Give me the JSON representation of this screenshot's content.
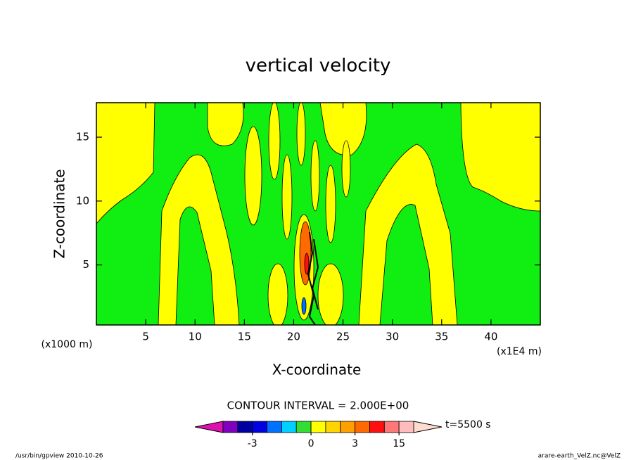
{
  "chart_data": {
    "type": "contour",
    "title": "vertical velocity",
    "x_label": "X-coordinate",
    "y_label": "Z-coordinate",
    "x_unit": "(x1E4 m)",
    "y_unit": "(x1000 m)",
    "xlim": [
      0,
      45
    ],
    "ylim": [
      0.3,
      17.7
    ],
    "xticks": [
      5,
      10,
      15,
      20,
      25,
      30,
      35,
      40
    ],
    "yticks": [
      5,
      10,
      15
    ],
    "contour_interval": "CONTOUR INTERVAL = 2.000E+00",
    "time_label": "t=5500 s",
    "colorbar": {
      "boundaries": [
        -7,
        -5,
        -3,
        -2,
        -1,
        -0.5,
        0,
        1,
        2,
        3,
        7,
        11,
        15,
        19
      ],
      "colors": [
        "#7f00bf",
        "#0000a0",
        "#0000e0",
        "#0070ff",
        "#00d0ff",
        "#33dd33",
        "#ffff00",
        "#ffd400",
        "#ffa000",
        "#ff6a00",
        "#ff1010",
        "#ff7878",
        "#ffbcbc"
      ],
      "under_color": "#e010b0",
      "over_color": "#ffdcd0",
      "ticks": [
        -3,
        0,
        3,
        15
      ]
    },
    "footer_left": "/usr/bin/gpview  2010-10-26",
    "footer_right": "arare-earth_VelZ.nc@VelZ"
  }
}
